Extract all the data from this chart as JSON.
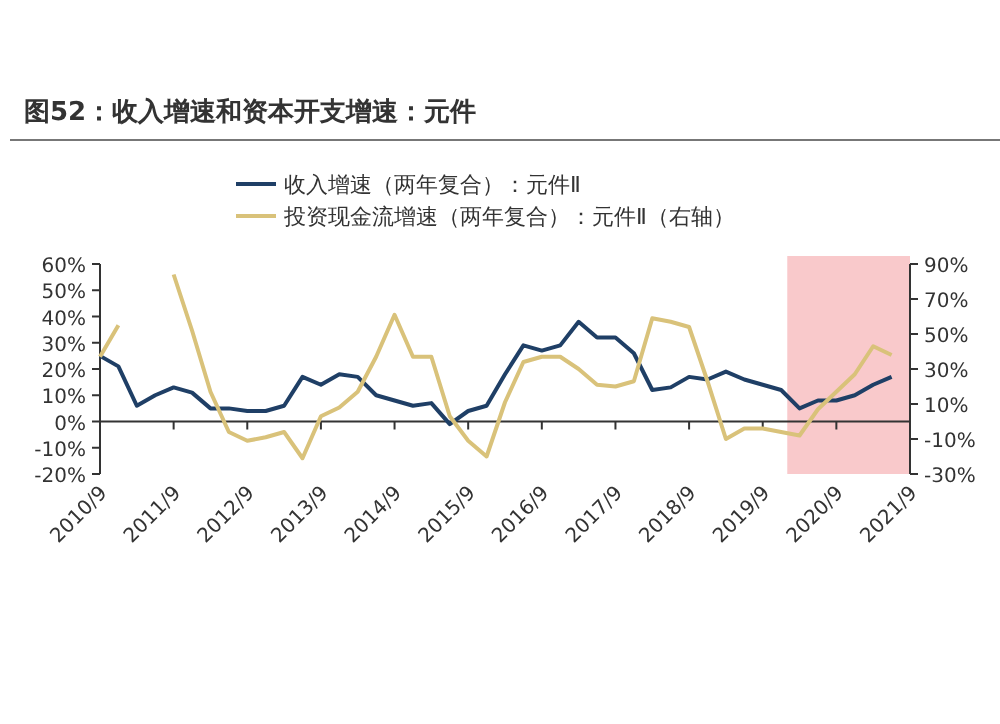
{
  "chart_data": {
    "type": "line",
    "title": "图52：收入增速和资本开支增速：元件",
    "x": [
      "2010-09",
      "2010-12",
      "2011-03",
      "2011-06",
      "2011-09",
      "2011-12",
      "2012-03",
      "2012-06",
      "2012-09",
      "2012-12",
      "2013-03",
      "2013-06",
      "2013-09",
      "2013-12",
      "2014-03",
      "2014-06",
      "2014-09",
      "2014-12",
      "2015-03",
      "2015-06",
      "2015-09",
      "2015-12",
      "2016-03",
      "2016-06",
      "2016-09",
      "2016-12",
      "2017-03",
      "2017-06",
      "2017-09",
      "2017-12",
      "2018-03",
      "2018-06",
      "2018-09",
      "2018-12",
      "2019-03",
      "2019-06",
      "2019-09",
      "2019-12",
      "2020-03",
      "2020-06",
      "2020-09",
      "2020-12",
      "2021-03",
      "2021-06"
    ],
    "series": [
      {
        "name": "收入增速（两年复合）：元件Ⅱ",
        "color": "#1f3f66",
        "values": [
          25,
          21,
          6,
          10,
          13,
          11,
          5,
          5,
          4,
          4,
          6,
          17,
          14,
          18,
          17,
          10,
          8,
          6,
          7,
          -1,
          4,
          6,
          18,
          29,
          27,
          29,
          38,
          32,
          32,
          26,
          12,
          13,
          17,
          16,
          19,
          16,
          14,
          12,
          5,
          8,
          8,
          10,
          14,
          17
        ]
      },
      {
        "name": "投资现金流增速（两年复合）：元件Ⅱ（右轴）",
        "color": "#d9c27a",
        "axis": "y2",
        "values": [
          37,
          55,
          null,
          null,
          84,
          52,
          17,
          -6,
          -11,
          -9,
          -6,
          -21,
          3,
          8,
          17,
          37,
          61,
          37,
          37,
          3,
          -11,
          -20,
          11,
          34,
          37,
          37,
          30,
          21,
          20,
          23,
          59,
          57,
          54,
          23,
          -10,
          -4,
          -4,
          -6,
          -8,
          7,
          17,
          27,
          43,
          38
        ]
      }
    ],
    "xlim": [
      "2010-09",
      "2021-09"
    ],
    "xticks": [
      {
        "value": "2010-09",
        "label": "2010/9"
      },
      {
        "value": "2011-09",
        "label": "2011/9"
      },
      {
        "value": "2012-09",
        "label": "2012/9"
      },
      {
        "value": "2013-09",
        "label": "2013/9"
      },
      {
        "value": "2014-09",
        "label": "2014/9"
      },
      {
        "value": "2015-09",
        "label": "2015/9"
      },
      {
        "value": "2016-09",
        "label": "2016/9"
      },
      {
        "value": "2017-09",
        "label": "2017/9"
      },
      {
        "value": "2018-09",
        "label": "2018/9"
      },
      {
        "value": "2019-09",
        "label": "2019/9"
      },
      {
        "value": "2020-09",
        "label": "2020/9"
      },
      {
        "value": "2021-09",
        "label": "2021/9"
      }
    ],
    "ylim": [
      -20,
      60
    ],
    "yticks": [
      {
        "value": -20,
        "label": "-20%"
      },
      {
        "value": -10,
        "label": "-10%"
      },
      {
        "value": 0,
        "label": "0%"
      },
      {
        "value": 10,
        "label": "10%"
      },
      {
        "value": 20,
        "label": "20%"
      },
      {
        "value": 30,
        "label": "30%"
      },
      {
        "value": 40,
        "label": "40%"
      },
      {
        "value": 50,
        "label": "50%"
      },
      {
        "value": 60,
        "label": "60%"
      }
    ],
    "y2lim": [
      -30,
      90
    ],
    "y2ticks": [
      {
        "value": -30,
        "label": "-30%"
      },
      {
        "value": -10,
        "label": "-10%"
      },
      {
        "value": 10,
        "label": "10%"
      },
      {
        "value": 30,
        "label": "30%"
      },
      {
        "value": 50,
        "label": "50%"
      },
      {
        "value": 70,
        "label": "70%"
      },
      {
        "value": 90,
        "label": "90%"
      }
    ],
    "bands": [
      {
        "axis": "x",
        "from": "2020-01",
        "to": "2021-09",
        "color": "#f9c9cb"
      }
    ],
    "legend": "top"
  }
}
